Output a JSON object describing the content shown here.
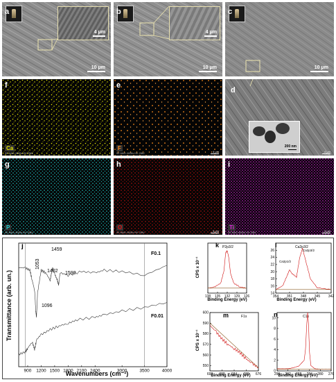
{
  "panels": {
    "a": {
      "label": "a",
      "scale": "10 μm",
      "inset_scale": "4 μm"
    },
    "b": {
      "label": "b",
      "scale": "10 μm",
      "inset_scale": "4 μm"
    },
    "c": {
      "label": "c",
      "scale": "10 μm"
    },
    "d": {
      "label": "d",
      "scale": "4 μm",
      "inset_scale": "200 nm"
    },
    "e": {
      "label": "e",
      "element": "F",
      "color": "#ff8c1a",
      "footer": "SE  MAG: 6000x  HV: 20kV",
      "scale": "4 μm"
    },
    "f": {
      "label": "f",
      "element": "Ca",
      "color": "#e6e600",
      "footer": "SE  MAG: 6000x  HV: 20kV",
      "scale": "4 μm"
    },
    "g": {
      "label": "g",
      "element": "P",
      "color": "#1fd0d0",
      "footer": "SE  MAG: 6000x  HV: 20kV",
      "scale": "4 μm"
    },
    "h": {
      "label": "h",
      "element": "O",
      "color": "#e01010",
      "footer": "SE  MAG: 6000x  HV: 20kV",
      "scale": "4 μm"
    },
    "i": {
      "label": "i",
      "element": "Ti",
      "color": "#e020e0",
      "footer": "SE  MAG: 6000x  HV: 20kV",
      "scale": "4 μm"
    }
  },
  "chart_data": [
    {
      "id": "j",
      "type": "line",
      "xlabel": "Wavenumbers (cm⁻¹)",
      "ylabel": "Transmittance (arb. un.)",
      "xlim": [
        700,
        4000
      ],
      "xticks": [
        900,
        1200,
        1500,
        1800,
        2100,
        2400,
        3000,
        3500,
        4000
      ],
      "series": [
        {
          "name": "F0.1",
          "x": [
            700,
            850,
            950,
            1000,
            1053,
            1080,
            1096,
            1120,
            1200,
            1300,
            1402,
            1430,
            1459,
            1500,
            1560,
            1590,
            1620,
            1800,
            2100,
            2400,
            2600,
            3000,
            3500,
            4000
          ],
          "y": [
            0.8,
            0.8,
            0.78,
            0.7,
            0.62,
            0.45,
            0.4,
            0.6,
            0.78,
            0.76,
            0.7,
            0.76,
            0.8,
            0.75,
            0.7,
            0.66,
            0.76,
            0.74,
            0.77,
            0.76,
            0.78,
            0.77,
            0.74,
            0.82
          ]
        },
        {
          "name": "F0.01",
          "x": [
            700,
            850,
            900,
            1000,
            1053,
            1100,
            1200,
            1400,
            1600,
            1800,
            2000,
            2400,
            2600,
            3000,
            3500,
            4000
          ],
          "y": [
            0.1,
            0.12,
            0.15,
            0.2,
            0.14,
            0.22,
            0.26,
            0.3,
            0.33,
            0.35,
            0.38,
            0.4,
            0.42,
            0.45,
            0.48,
            0.52
          ]
        }
      ],
      "annotations": [
        "1459",
        "1053",
        "1402",
        "1590",
        "1096"
      ]
    },
    {
      "id": "k",
      "type": "line",
      "title": "P2p3/2",
      "xlabel": "Binding Energy (eV)",
      "ylabel": "CPS x 10⁻¹",
      "xlim": [
        138,
        126
      ],
      "ylim": [
        0,
        100
      ],
      "xticks": [
        138,
        135,
        132,
        129,
        126
      ],
      "series": [
        {
          "name": "",
          "x": [
            138,
            136,
            134,
            133,
            132.5,
            132,
            131.5,
            131,
            130,
            128,
            126
          ],
          "y": [
            10,
            12,
            20,
            45,
            80,
            85,
            70,
            40,
            20,
            12,
            10
          ]
        }
      ]
    },
    {
      "id": "l",
      "type": "line",
      "title": "Ca2p3/2",
      "xlabel": "Binding Energy (eV)",
      "ylabel": "",
      "xlim": [
        354,
        342
      ],
      "ylim": [
        14,
        28
      ],
      "xticks": [
        354,
        351,
        348,
        345,
        342
      ],
      "yticks": [
        14,
        16,
        18,
        20,
        22,
        24,
        26
      ],
      "annotations": [
        "Ca2p1/2",
        "Ca2p3/2"
      ],
      "series": [
        {
          "name": "",
          "x": [
            354,
            352.5,
            351.5,
            351,
            350.5,
            349.5,
            348.8,
            348.2,
            347.5,
            346.5,
            345,
            342
          ],
          "y": [
            15,
            16,
            19,
            20.5,
            19.5,
            18.5,
            24,
            26.5,
            23,
            18,
            15.5,
            15
          ]
        }
      ]
    },
    {
      "id": "m",
      "type": "line",
      "title": "F1s",
      "xlabel": "Binding Energy (eV)",
      "ylabel": "CPS x 10⁻¹",
      "xlim": [
        692,
        676
      ],
      "ylim": [
        545,
        600
      ],
      "xticks": [
        692,
        688,
        684,
        680,
        676
      ],
      "yticks": [
        550,
        560,
        570,
        580,
        590,
        600
      ],
      "series": [
        {
          "name": "",
          "x": [
            692,
            690,
            688,
            686,
            684,
            682,
            680,
            678,
            676
          ],
          "y": [
            588,
            582,
            575,
            570,
            566,
            562,
            556,
            552,
            548
          ]
        }
      ]
    },
    {
      "id": "n",
      "type": "line",
      "title": "C1s",
      "xlabel": "Binding Energy (eV)",
      "ylabel": "",
      "xlim": [
        296,
        276
      ],
      "ylim": [
        0,
        11
      ],
      "xticks": [
        296,
        292,
        288,
        284,
        280,
        276
      ],
      "yticks": [
        0,
        2,
        4,
        6,
        8,
        10
      ],
      "series": [
        {
          "name": "",
          "x": [
            296,
            292,
            290,
            288,
            286,
            285.5,
            285,
            284.7,
            284.4,
            284,
            283.5,
            282,
            280,
            276
          ],
          "y": [
            0.4,
            0.4,
            0.6,
            0.9,
            2,
            4,
            9,
            11,
            9,
            3.5,
            1,
            0.4,
            0.3,
            0.3
          ]
        }
      ]
    }
  ]
}
